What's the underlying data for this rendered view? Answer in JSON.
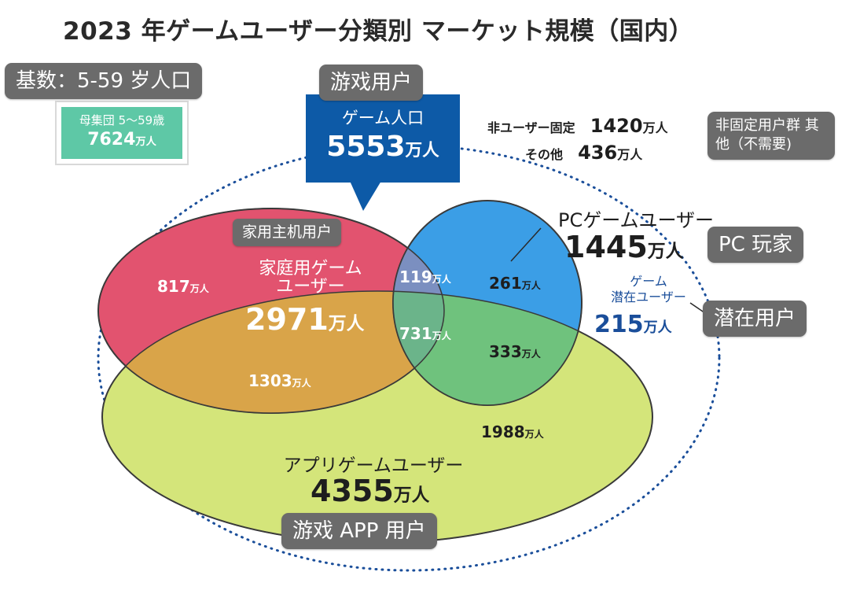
{
  "title": "2023 年ゲームユーザー分類別 マーケット規模（国内）",
  "notes": {
    "base": "基数：5-59 岁人口",
    "game_users": "游戏用户",
    "console_users": "家用主机用户",
    "non_fixed": "非固定用户群 其他（不需要)",
    "pc_players": "PC 玩家",
    "potential": "潜在用户",
    "app_users": "游戏 APP 用户"
  },
  "population": {
    "label": "母集団 5〜59歳",
    "value": "7624",
    "unit": "万人"
  },
  "game_population": {
    "label": "ゲーム人口",
    "value": "5553",
    "unit": "万人"
  },
  "non_users": {
    "fixed_label": "非ユーザー固定",
    "fixed_value": "1420",
    "fixed_unit": "万人",
    "other_label": "その他",
    "other_value": "436",
    "other_unit": "万人"
  },
  "pc": {
    "label": "PCゲームユーザー",
    "value": "1445",
    "unit": "万人"
  },
  "potential_users": {
    "label_line1": "ゲーム",
    "label_line2": "潜在ユーザー",
    "value": "215",
    "unit": "万人"
  },
  "console": {
    "label_line1": "家庭用ゲーム",
    "label_line2": "ユーザー",
    "value": "2971",
    "unit": "万人"
  },
  "app": {
    "label": "アプリゲームユーザー",
    "value": "4355",
    "unit": "万人"
  },
  "segments": {
    "console_only": "817",
    "console_pc": "119",
    "pc_only": "261",
    "all_three": "731",
    "console_app": "1303",
    "pc_app": "333",
    "app_only": "1988",
    "unit": "万人"
  },
  "colors": {
    "console": "#e2536f",
    "pc": "#3b9ee6",
    "app": "#d4e57a",
    "console_app": "#d9a449",
    "console_pc": "#7b8fc0",
    "pc_app": "#6fc27d",
    "all_three": "#6bb48a",
    "dark_blue": "#0d5aa7",
    "teal": "#5ec8a6",
    "note_gray": "#6b6b6b"
  }
}
